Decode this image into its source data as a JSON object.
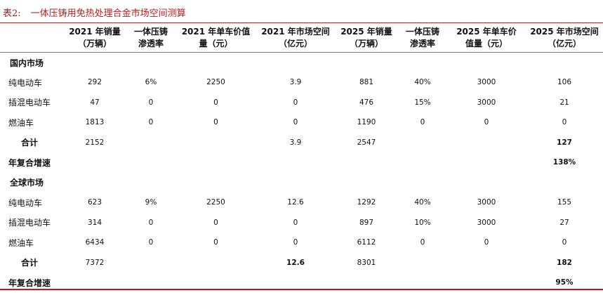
{
  "title": {
    "number": "表2:",
    "text": "一体压铸用免热处理合金市场空间测算"
  },
  "columns": [
    {
      "line1": "",
      "line2": ""
    },
    {
      "line1": "2021 年销量",
      "line2": "（万辆）"
    },
    {
      "line1": "一体压铸",
      "line2": "渗透率"
    },
    {
      "line1": "2021 年单车价值",
      "line2": "量（元）"
    },
    {
      "line1": "2021 年市场空间",
      "line2": "（亿元）"
    },
    {
      "line1": "2025 年销量",
      "line2": "（万辆）"
    },
    {
      "line1": "一体压铸",
      "line2": "渗透率"
    },
    {
      "line1": "2025 年单车价",
      "line2": "值量（元）"
    },
    {
      "line1": "2025 年市场空间",
      "line2": "（亿元）"
    }
  ],
  "rows": [
    {
      "type": "cat",
      "label": "国内市场",
      "cells": [
        "",
        "",
        "",
        "",
        "",
        "",
        "",
        ""
      ]
    },
    {
      "type": "sub",
      "label": "纯电动车",
      "cells": [
        "292",
        "6%",
        "2250",
        "3.9",
        "881",
        "40%",
        "3000",
        "106"
      ]
    },
    {
      "type": "sub",
      "label": "插混电动车",
      "cells": [
        "47",
        "0",
        "0",
        "0",
        "476",
        "15%",
        "3000",
        "21"
      ]
    },
    {
      "type": "sub",
      "label": "燃油车",
      "cells": [
        "1813",
        "0",
        "0",
        "0",
        "1190",
        "0",
        "0",
        "0"
      ]
    },
    {
      "type": "sum",
      "label": "合计",
      "cells": [
        "2152",
        "",
        "",
        "3.9",
        "2547",
        "",
        "",
        "127"
      ],
      "bold": [
        7
      ]
    },
    {
      "type": "growth",
      "label": "年复合增速",
      "cells": [
        "",
        "",
        "",
        "",
        "",
        "",
        "",
        "138%"
      ],
      "bold": [
        7
      ]
    },
    {
      "type": "cat",
      "label": "全球市场",
      "cells": [
        "",
        "",
        "",
        "",
        "",
        "",
        "",
        ""
      ]
    },
    {
      "type": "sub",
      "label": "纯电动车",
      "cells": [
        "623",
        "9%",
        "2250",
        "12.6",
        "1292",
        "40%",
        "3000",
        "155"
      ]
    },
    {
      "type": "sub",
      "label": "插混电动车",
      "cells": [
        "314",
        "0",
        "0",
        "0",
        "897",
        "10%",
        "3000",
        "27"
      ]
    },
    {
      "type": "sub",
      "label": "燃油车",
      "cells": [
        "6434",
        "0",
        "0",
        "0",
        "6112",
        "0",
        "0",
        "0"
      ]
    },
    {
      "type": "sum",
      "label": "合计",
      "cells": [
        "7372",
        "",
        "",
        "12.6",
        "8301",
        "",
        "",
        "182"
      ],
      "bold": [
        3,
        7
      ]
    },
    {
      "type": "growth",
      "label": "年复合增速",
      "cells": [
        "",
        "",
        "",
        "",
        "",
        "",
        "",
        "95%"
      ],
      "bold": [
        7
      ]
    }
  ]
}
